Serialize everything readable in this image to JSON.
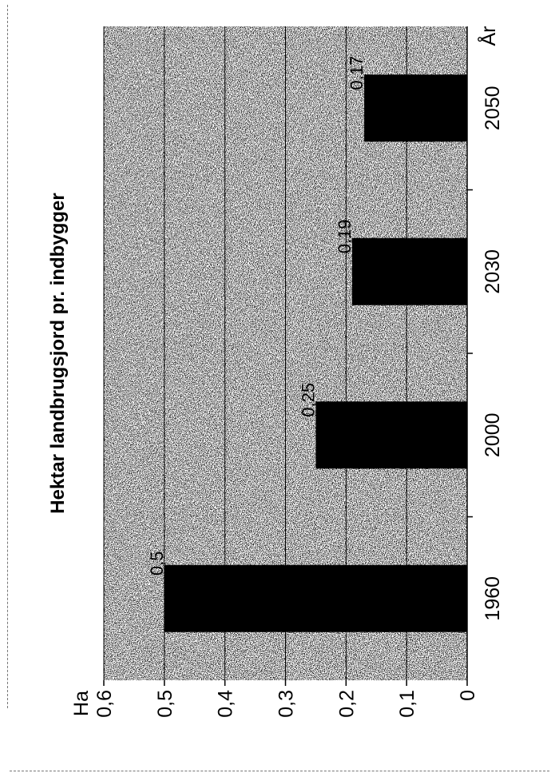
{
  "chart_data": {
    "type": "bar",
    "orientation": "rotated-90-clockwise",
    "title": "Hektar landbrugsjord pr. indbygger",
    "xlabel": "År",
    "ylabel": "Ha",
    "categories": [
      "1960",
      "2000",
      "2030",
      "2050"
    ],
    "values": [
      0.5,
      0.25,
      0.19,
      0.17
    ],
    "data_labels": [
      "0,5",
      "0,25",
      "0,19",
      "0,17"
    ],
    "ylim": [
      0,
      0.6
    ],
    "yticks": [
      "0",
      "0,1",
      "0,2",
      "0,3",
      "0,4",
      "0,5",
      "0,6"
    ],
    "grid": true,
    "bar_color": "#000000",
    "plot_background": "stippled gray"
  }
}
